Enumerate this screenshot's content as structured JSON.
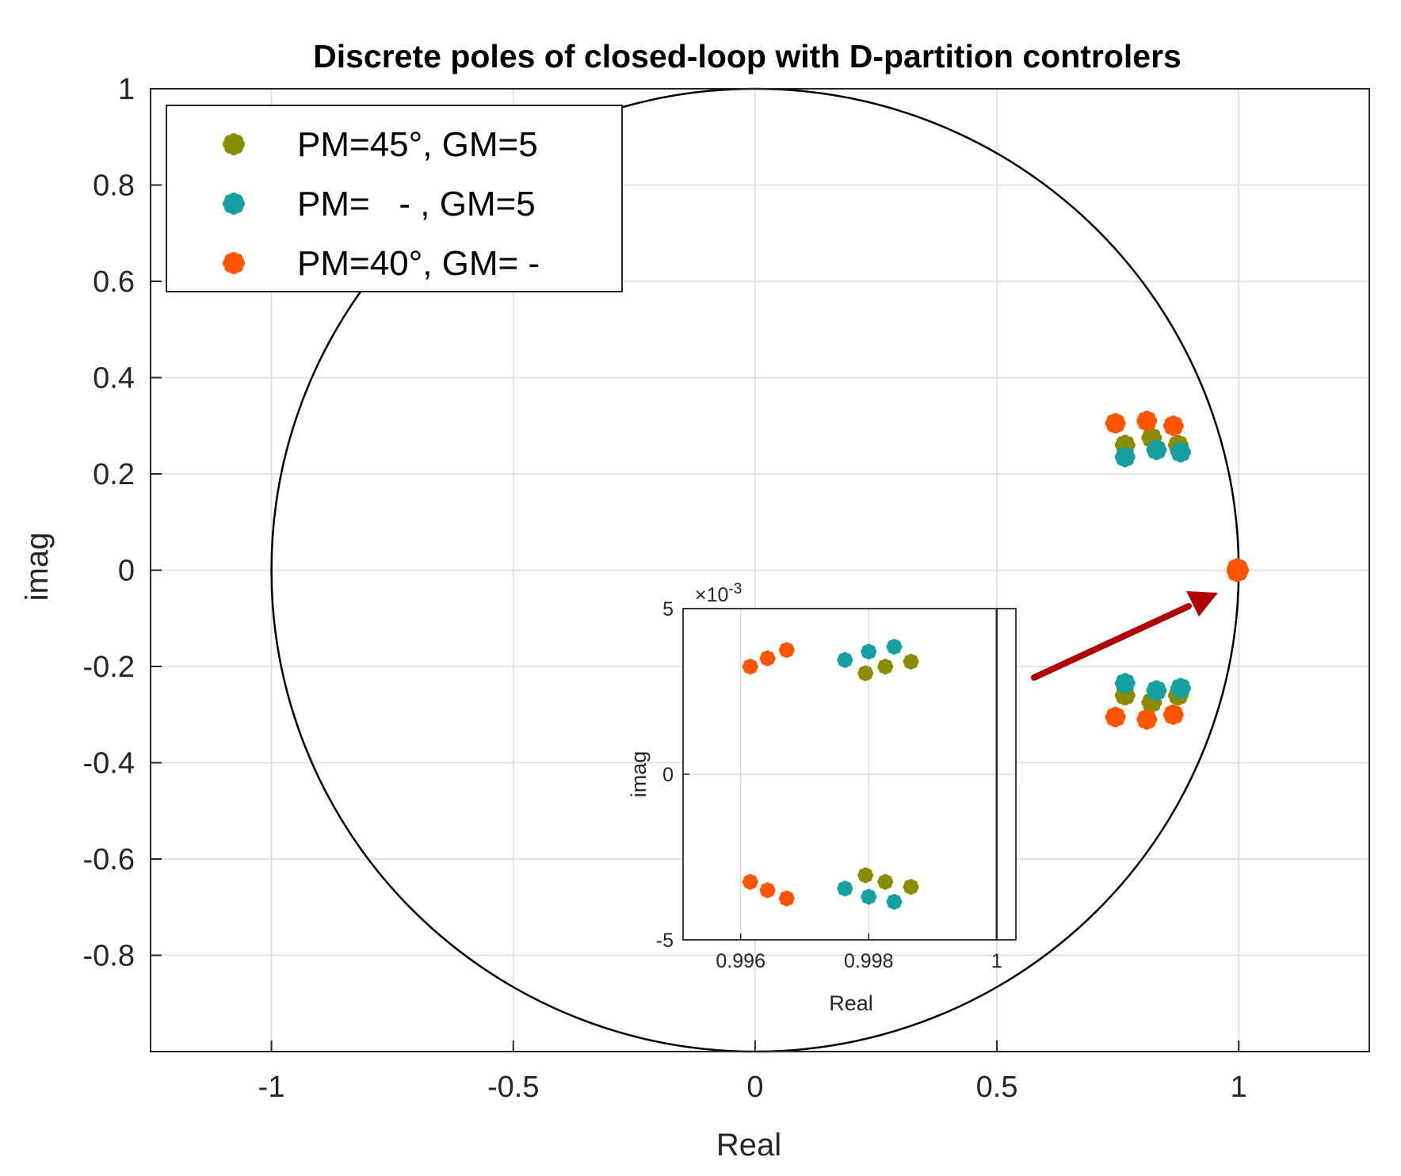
{
  "chart_data": [
    {
      "type": "scatter",
      "title": "Discrete poles of closed-loop with D-partition controlers",
      "xlabel": "Real",
      "ylabel": "imag",
      "xlim": [
        -1.25,
        1.27
      ],
      "ylim": [
        -1.0,
        1.0
      ],
      "xticks": [
        -1,
        -0.5,
        0,
        0.5,
        1
      ],
      "xtick_labels": [
        "-1",
        "-0.5",
        "0",
        "0.5",
        "1"
      ],
      "yticks": [
        1,
        0.8,
        0.6,
        0.4,
        0.2,
        0,
        -0.2,
        -0.4,
        -0.6,
        -0.8
      ],
      "ytick_labels": [
        "1",
        "0.8",
        "0.6",
        "0.4",
        "0.2",
        "0",
        "-0.2",
        "-0.4",
        "-0.6",
        "-0.8"
      ],
      "grid": true,
      "unit_circle": true,
      "legend_position": "top-left",
      "series": [
        {
          "name": "PM=45°, GM=5",
          "color": "#8c8c00",
          "points": [
            [
              0.765,
              0.26
            ],
            [
              0.82,
              0.275
            ],
            [
              0.875,
              0.26
            ],
            [
              0.765,
              -0.26
            ],
            [
              0.82,
              -0.275
            ],
            [
              0.875,
              -0.26
            ],
            [
              0.998,
              0.003
            ],
            [
              0.998,
              -0.003
            ]
          ]
        },
        {
          "name": "PM=   - , GM=5",
          "color": "#14a0a0",
          "points": [
            [
              0.765,
              0.235
            ],
            [
              0.83,
              0.25
            ],
            [
              0.88,
              0.245
            ],
            [
              0.765,
              -0.235
            ],
            [
              0.83,
              -0.25
            ],
            [
              0.88,
              -0.245
            ],
            [
              0.998,
              0.0035
            ],
            [
              0.998,
              -0.0035
            ]
          ]
        },
        {
          "name": "PM=40°, GM= -",
          "color": "#ff5500",
          "points": [
            [
              0.745,
              0.305
            ],
            [
              0.81,
              0.31
            ],
            [
              0.865,
              0.3
            ],
            [
              0.745,
              -0.305
            ],
            [
              0.81,
              -0.31
            ],
            [
              0.865,
              -0.3
            ],
            [
              1.0,
              0.0
            ],
            [
              0.9965,
              0.0035
            ],
            [
              0.9965,
              -0.0035
            ]
          ]
        }
      ]
    },
    {
      "type": "scatter",
      "title": "",
      "xlabel": "Real",
      "ylabel": "imag",
      "exponent_label": "×10",
      "exponent_power": "-3",
      "xlim": [
        0.9951,
        1.0003
      ],
      "ylim": [
        -5,
        5
      ],
      "xticks": [
        0.996,
        0.998,
        1
      ],
      "xtick_labels": [
        "0.996",
        "0.998",
        "1"
      ],
      "yticks": [
        5,
        0,
        -5
      ],
      "ytick_labels": [
        "5",
        "0",
        "-5"
      ],
      "grid": true,
      "series": [
        {
          "name": "PM=45°, GM=5",
          "color": "#8c8c00",
          "points": [
            [
              0.99795,
              3.05
            ],
            [
              0.99826,
              3.25
            ],
            [
              0.99866,
              3.4
            ],
            [
              0.99795,
              -3.05
            ],
            [
              0.99826,
              -3.25
            ],
            [
              0.99866,
              -3.4
            ]
          ]
        },
        {
          "name": "PM=   - , GM=5",
          "color": "#14a0a0",
          "points": [
            [
              0.99763,
              3.45
            ],
            [
              0.998,
              3.7
            ],
            [
              0.9984,
              3.85
            ],
            [
              0.99763,
              -3.45
            ],
            [
              0.998,
              -3.7
            ],
            [
              0.9984,
              -3.85
            ]
          ]
        },
        {
          "name": "PM=40°, GM= -",
          "color": "#ff5500",
          "points": [
            [
              0.99615,
              3.25
            ],
            [
              0.99642,
              3.5
            ],
            [
              0.99672,
              3.75
            ],
            [
              0.99615,
              -3.25
            ],
            [
              0.99642,
              -3.5
            ],
            [
              0.99672,
              -3.75
            ]
          ]
        }
      ],
      "vertical_line_x": 1.0
    }
  ],
  "annotation": {
    "arrow_color": "#b00000"
  }
}
